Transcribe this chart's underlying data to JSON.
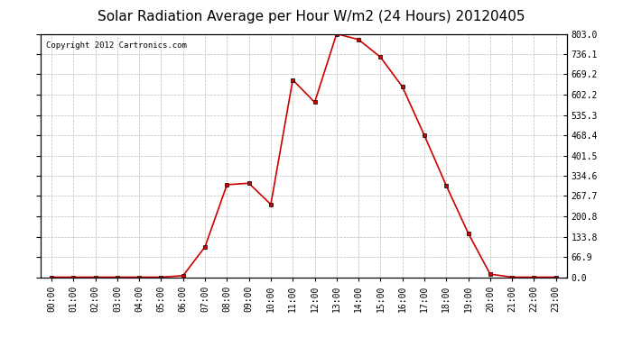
{
  "title": "Solar Radiation Average per Hour W/m2 (24 Hours) 20120405",
  "copyright_text": "Copyright 2012 Cartronics.com",
  "hours": [
    0,
    1,
    2,
    3,
    4,
    5,
    6,
    7,
    8,
    9,
    10,
    11,
    12,
    13,
    14,
    15,
    16,
    17,
    18,
    19,
    20,
    21,
    22,
    23
  ],
  "x_labels": [
    "00:00",
    "01:00",
    "02:00",
    "03:00",
    "04:00",
    "05:00",
    "06:00",
    "07:00",
    "08:00",
    "09:00",
    "10:00",
    "11:00",
    "12:00",
    "13:00",
    "14:00",
    "15:00",
    "16:00",
    "17:00",
    "18:00",
    "19:00",
    "20:00",
    "21:00",
    "22:00",
    "23:00"
  ],
  "values": [
    0,
    0,
    0,
    0,
    0,
    0,
    5,
    100,
    305,
    310,
    240,
    651,
    577,
    803,
    784,
    726,
    628,
    468,
    302,
    145,
    10,
    0,
    0,
    0
  ],
  "y_ticks": [
    0.0,
    66.9,
    133.8,
    200.8,
    267.7,
    334.6,
    401.5,
    468.4,
    535.3,
    602.2,
    669.2,
    736.1,
    803.0
  ],
  "y_min": 0.0,
  "y_max": 803.0,
  "line_color": "#cc0000",
  "marker": "s",
  "marker_size": 2.5,
  "marker_color": "#000000",
  "bg_color": "#ffffff",
  "grid_color": "#bbbbbb",
  "title_fontsize": 11,
  "copyright_fontsize": 6.5,
  "tick_fontsize": 7,
  "figsize": [
    6.9,
    3.75
  ],
  "dpi": 100
}
